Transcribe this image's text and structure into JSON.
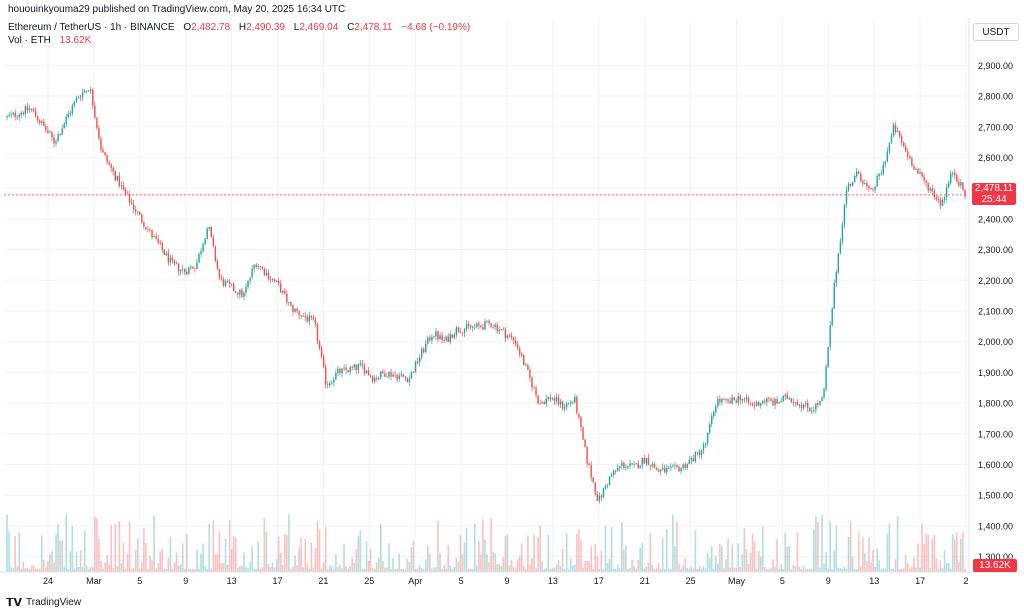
{
  "header": {
    "published_line": "hououinkyouma29 published on TradingView.com, May 20, 2025 16:34 UTC"
  },
  "legend": {
    "symbol": "Ethereum / TetherUS · 1h · BINANCE",
    "open_label": "O",
    "open": "2,482.78",
    "high_label": "H",
    "high": "2,490.39",
    "low_label": "L",
    "low": "2,469.04",
    "close_label": "C",
    "close": "2,478.11",
    "change": "−4.68 (−0.19%)",
    "vol_label": "Vol · ETH",
    "vol_value": "13.62K"
  },
  "price_scale": {
    "currency": "USDT",
    "current_price": "2,478.11",
    "countdown": "25:44",
    "volume_tag": "13.62K"
  },
  "footer": {
    "brand": "TradingView"
  },
  "colors": {
    "up": "#26a69a",
    "down": "#ef5350",
    "tag": "#f23645",
    "grid": "#f0f3fa",
    "text": "#131722"
  },
  "chart_data": {
    "type": "candlestick",
    "interval": "1h",
    "ylim": [
      1250,
      2950
    ],
    "y_ticks": [
      "2,900.00",
      "2,800.00",
      "2,700.00",
      "2,600.00",
      "2,500.00",
      "2,400.00",
      "2,300.00",
      "2,200.00",
      "2,100.00",
      "2,000.00",
      "1,900.00",
      "1,800.00",
      "1,700.00",
      "1,600.00",
      "1,500.00",
      "1,400.00",
      "1,300.00"
    ],
    "x_ticks": [
      "24",
      "Mar",
      "5",
      "9",
      "13",
      "17",
      "21",
      "25",
      "Apr",
      "5",
      "9",
      "13",
      "17",
      "21",
      "25",
      "May",
      "5",
      "9",
      "13",
      "17",
      "2"
    ],
    "last_price": 2478.11,
    "price_path": [
      {
        "t": 0,
        "p": 2730
      },
      {
        "t": 2,
        "p": 2760
      },
      {
        "t": 4,
        "p": 2650
      },
      {
        "t": 6,
        "p": 2800
      },
      {
        "t": 7,
        "p": 2830
      },
      {
        "t": 8,
        "p": 2620
      },
      {
        "t": 10,
        "p": 2480
      },
      {
        "t": 12,
        "p": 2360
      },
      {
        "t": 14,
        "p": 2250
      },
      {
        "t": 15,
        "p": 2230
      },
      {
        "t": 16,
        "p": 2250
      },
      {
        "t": 17,
        "p": 2380
      },
      {
        "t": 18,
        "p": 2200
      },
      {
        "t": 20,
        "p": 2150
      },
      {
        "t": 21,
        "p": 2260
      },
      {
        "t": 23,
        "p": 2180
      },
      {
        "t": 24,
        "p": 2110
      },
      {
        "t": 26,
        "p": 2060
      },
      {
        "t": 27,
        "p": 1860
      },
      {
        "t": 28,
        "p": 1900
      },
      {
        "t": 30,
        "p": 1920
      },
      {
        "t": 31,
        "p": 1880
      },
      {
        "t": 32,
        "p": 1900
      },
      {
        "t": 34,
        "p": 1880
      },
      {
        "t": 35,
        "p": 1960
      },
      {
        "t": 36,
        "p": 2030
      },
      {
        "t": 37,
        "p": 2000
      },
      {
        "t": 38,
        "p": 2040
      },
      {
        "t": 40,
        "p": 2050
      },
      {
        "t": 41,
        "p": 2060
      },
      {
        "t": 42,
        "p": 2030
      },
      {
        "t": 43,
        "p": 2000
      },
      {
        "t": 44,
        "p": 1900
      },
      {
        "t": 45,
        "p": 1800
      },
      {
        "t": 46,
        "p": 1820
      },
      {
        "t": 47,
        "p": 1790
      },
      {
        "t": 48,
        "p": 1810
      },
      {
        "t": 49,
        "p": 1620
      },
      {
        "t": 50,
        "p": 1480
      },
      {
        "t": 51,
        "p": 1560
      },
      {
        "t": 52,
        "p": 1600
      },
      {
        "t": 53,
        "p": 1590
      },
      {
        "t": 54,
        "p": 1620
      },
      {
        "t": 55,
        "p": 1580
      },
      {
        "t": 56,
        "p": 1580
      },
      {
        "t": 57,
        "p": 1590
      },
      {
        "t": 58,
        "p": 1620
      },
      {
        "t": 59,
        "p": 1660
      },
      {
        "t": 60,
        "p": 1810
      },
      {
        "t": 61,
        "p": 1800
      },
      {
        "t": 62,
        "p": 1820
      },
      {
        "t": 63,
        "p": 1790
      },
      {
        "t": 64,
        "p": 1810
      },
      {
        "t": 65,
        "p": 1800
      },
      {
        "t": 66,
        "p": 1820
      },
      {
        "t": 67,
        "p": 1800
      },
      {
        "t": 68,
        "p": 1780
      },
      {
        "t": 69,
        "p": 1810
      },
      {
        "t": 70,
        "p": 2200
      },
      {
        "t": 71,
        "p": 2500
      },
      {
        "t": 72,
        "p": 2550
      },
      {
        "t": 73,
        "p": 2480
      },
      {
        "t": 74,
        "p": 2560
      },
      {
        "t": 75,
        "p": 2700
      },
      {
        "t": 76,
        "p": 2620
      },
      {
        "t": 77,
        "p": 2550
      },
      {
        "t": 78,
        "p": 2500
      },
      {
        "t": 79,
        "p": 2450
      },
      {
        "t": 80,
        "p": 2560
      },
      {
        "t": 81,
        "p": 2478
      }
    ]
  }
}
